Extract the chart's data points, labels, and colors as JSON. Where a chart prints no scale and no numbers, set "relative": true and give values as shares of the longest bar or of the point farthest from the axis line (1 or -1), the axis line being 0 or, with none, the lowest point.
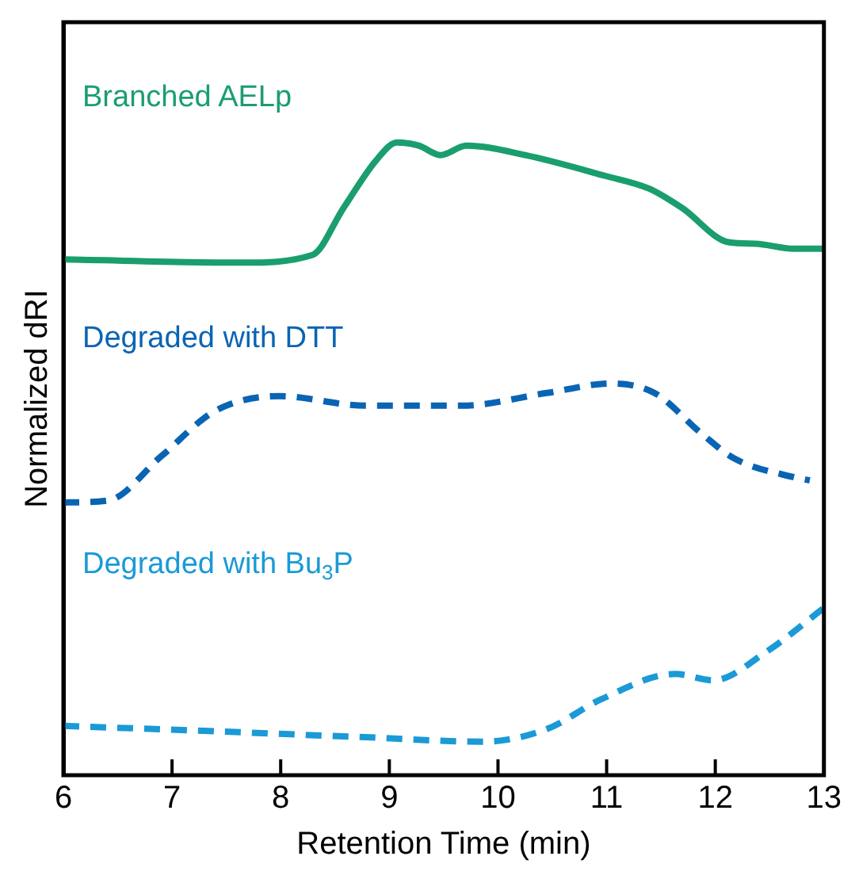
{
  "chart_data": {
    "type": "line",
    "xlabel": "Retention Time (min)",
    "ylabel": "Normalized dRI",
    "relative": true,
    "xlim": [
      6,
      13
    ],
    "xticks": [
      6,
      7,
      8,
      9,
      10,
      11,
      12,
      13
    ],
    "grid": false,
    "legend": false,
    "marker": "none",
    "series": [
      {
        "name": "Branched AELp",
        "color": "#1a9e6e",
        "line_style": "solid",
        "x": [
          6.0,
          7.64,
          8.29,
          8.58,
          8.88,
          9.07,
          9.27,
          9.47,
          9.71,
          10.25,
          10.99,
          11.39,
          11.69,
          12.13,
          12.37,
          12.72,
          12.99
        ],
        "values": [
          0.815,
          0.81,
          0.822,
          0.897,
          0.972,
          1,
          0.995,
          0.98,
          0.995,
          0.98,
          0.947,
          0.927,
          0.897,
          0.842,
          0.84,
          0.832,
          0.832
        ]
      },
      {
        "name": "Degraded with DTT",
        "color": "#0a64b4",
        "line_style": "dashed",
        "x": [
          6.0,
          6.41,
          6.9,
          7.4,
          7.99,
          8.78,
          9.66,
          10.45,
          11.04,
          11.44,
          11.88,
          12.17,
          12.72,
          12.87
        ],
        "values": [
          0.431,
          0.434,
          0.504,
          0.576,
          0.599,
          0.584,
          0.584,
          0.604,
          0.619,
          0.604,
          0.539,
          0.501,
          0.471,
          0.466
        ]
      },
      {
        "name": "Degraded with Bu$_{3}$P",
        "color": "#1a9ad6",
        "line_style": "dashed",
        "x": [
          6.0,
          7.3,
          8.78,
          9.86,
          10.45,
          10.95,
          11.63,
          11.98,
          12.47,
          12.99
        ],
        "values": [
          0.078,
          0.07,
          0.06,
          0.053,
          0.073,
          0.12,
          0.16,
          0.15,
          0.195,
          0.263
        ]
      }
    ]
  }
}
